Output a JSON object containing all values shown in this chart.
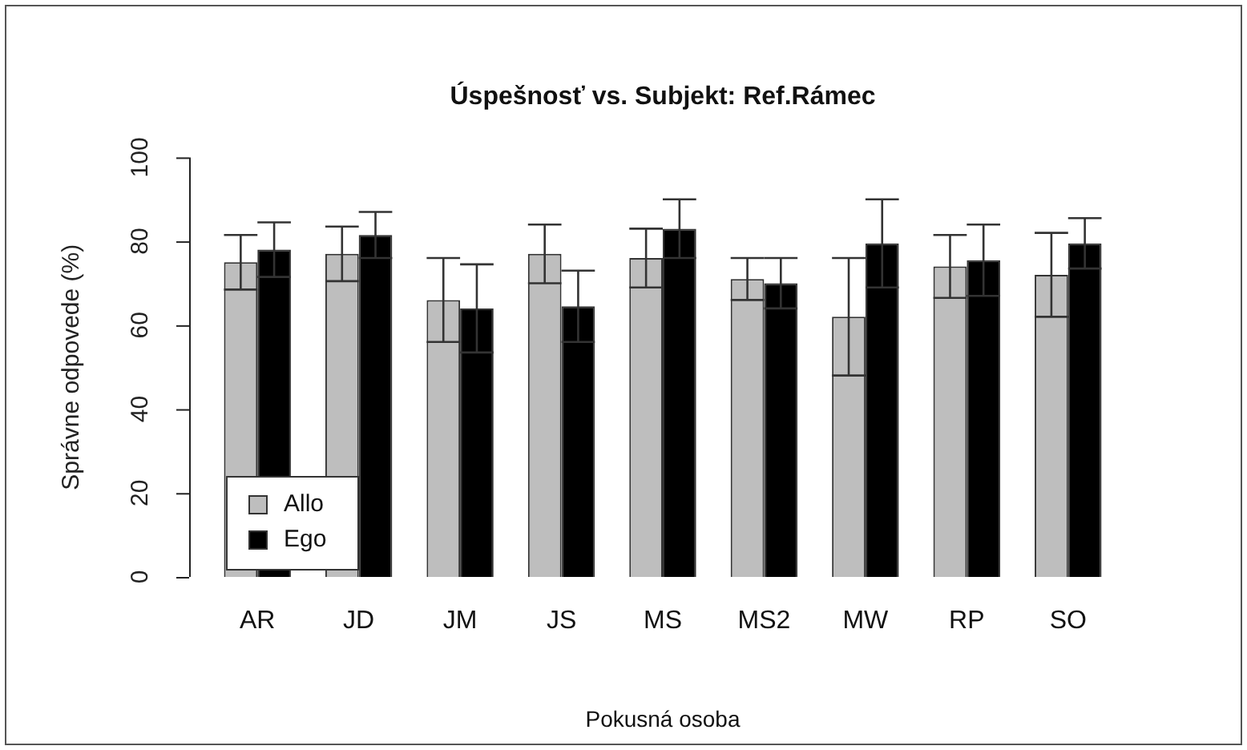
{
  "chart_data": {
    "type": "bar",
    "title": "Úspešnosť vs. Subjekt: Ref.Rámec",
    "xlabel": "Pokusná osoba",
    "ylabel": "Správne odpovede (%)",
    "categories": [
      "AR",
      "JD",
      "JM",
      "JS",
      "MS",
      "MS2",
      "MW",
      "RP",
      "SO"
    ],
    "series": [
      {
        "name": "Allo",
        "color": "#bebebe",
        "values": [
          75,
          77,
          66,
          77,
          76,
          71,
          62,
          74,
          72
        ],
        "errors": [
          6.5,
          6.5,
          10,
          7,
          7,
          5,
          14,
          7.5,
          10
        ]
      },
      {
        "name": "Ego",
        "color": "#000000",
        "values": [
          78,
          81.5,
          64,
          64.5,
          83,
          70,
          79.5,
          75.5,
          79.5
        ],
        "errors": [
          6.5,
          5.5,
          10.5,
          8.5,
          7,
          6,
          10.5,
          8.5,
          6
        ]
      }
    ],
    "ylim": [
      0,
      100
    ],
    "yticks": [
      0,
      20,
      40,
      60,
      80,
      100
    ],
    "grid": false,
    "legend": "bottom left"
  }
}
